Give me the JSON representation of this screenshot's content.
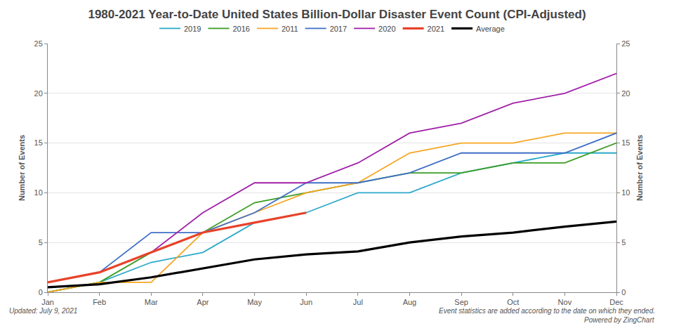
{
  "chart_data": {
    "type": "line",
    "title": "1980-2021 Year-to-Date United States Billion-Dollar Disaster Event Count (CPI-Adjusted)",
    "ylabel": "Number of Events",
    "y2label": "Number of Events",
    "categories": [
      "Jan",
      "Feb",
      "Mar",
      "Apr",
      "May",
      "Jun",
      "Jul",
      "Aug",
      "Sep",
      "Oct",
      "Nov",
      "Dec"
    ],
    "series": [
      {
        "name": "2019",
        "color": "#2ca9c9",
        "line_style": "solid",
        "values": [
          0,
          1,
          3,
          4,
          7,
          8,
          10,
          10,
          12,
          13,
          14,
          14
        ]
      },
      {
        "name": "2016",
        "color": "#3a9d23",
        "line_style": "solid",
        "values": [
          0,
          1,
          4,
          6,
          9,
          10,
          11,
          12,
          12,
          13,
          13,
          15
        ]
      },
      {
        "name": "2011",
        "color": "#f5a623",
        "line_style": "solid",
        "values": [
          0,
          1,
          1,
          6,
          8,
          10,
          11,
          14,
          15,
          15,
          16,
          16
        ]
      },
      {
        "name": "2017",
        "color": "#3f6fc6",
        "line_style": "solid",
        "values": [
          1,
          2,
          6,
          6,
          8,
          11,
          11,
          12,
          14,
          14,
          14,
          16
        ]
      },
      {
        "name": "2020",
        "color": "#a020a8",
        "line_style": "solid",
        "values": [
          1,
          2,
          4,
          8,
          11,
          11,
          13,
          16,
          17,
          19,
          20,
          22
        ]
      },
      {
        "name": "2021",
        "color": "#e8422a",
        "line_style": "bold",
        "values": [
          1,
          2,
          4,
          6,
          7,
          8,
          null,
          null,
          null,
          null,
          null,
          null
        ]
      },
      {
        "name": "Average",
        "color": "#000000",
        "line_style": "bold",
        "values": [
          0.5,
          0.8,
          1.5,
          2.4,
          3.3,
          3.8,
          4.1,
          5,
          5.6,
          6,
          6.6,
          7.1
        ]
      }
    ],
    "ylim": [
      0,
      25
    ],
    "yticks": [
      0,
      5,
      10,
      15,
      20,
      25
    ],
    "y2lim": [
      0,
      25
    ],
    "y2ticks": [
      0,
      5,
      10,
      15,
      20,
      25
    ],
    "grid": true,
    "legend": "top",
    "annotations": [
      {
        "text": "Updated: July 9, 2021",
        "position": "bottom left"
      },
      {
        "text": "Event statistics are added according to the date on which they ended.",
        "position": "bottom right"
      },
      {
        "text": "Powered by ZingChart",
        "position": "bottom right"
      }
    ]
  }
}
